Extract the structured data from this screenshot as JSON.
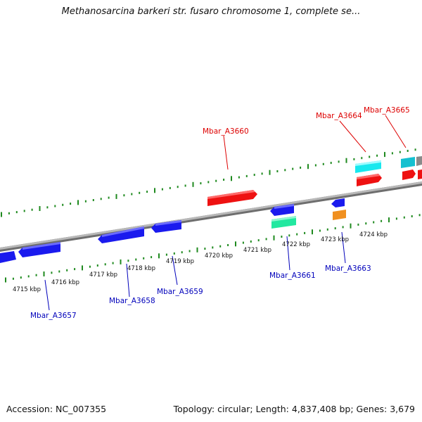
{
  "title": "Methanosarcina barkeri str. fusaro chromosome 1, complete se...",
  "footer": {
    "accession": "Accession: NC_007355",
    "topology": "Topology: circular; Length: 4,837,408 bp; Genes: 3,679"
  },
  "colors": {
    "forward_gene": "#ee1111",
    "reverse_gene": "#1a1aee",
    "tick": "#1f8a1f",
    "backbone": "#8a8a8a",
    "label_forward": "#dd0000",
    "label_reverse": "#0000bb"
  },
  "scale_labels": [
    "4715 kbp",
    "4716 kbp",
    "4717 kbp",
    "4718 kbp",
    "4719 kbp",
    "4720 kbp",
    "4721 kbp",
    "4722 kbp",
    "4723 kbp",
    "4724 kbp"
  ],
  "gene_labels": {
    "A3657": "Mbar_A3657",
    "A3658": "Mbar_A3658",
    "A3659": "Mbar_A3659",
    "A3660": "Mbar_A3660",
    "A3661": "Mbar_A3661",
    "A3663": "Mbar_A3663",
    "A3664": "Mbar_A3664",
    "A3665": "Mbar_A3665"
  }
}
